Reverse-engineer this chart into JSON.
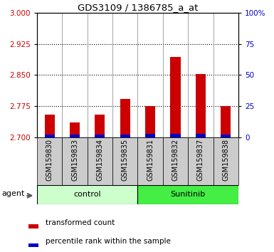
{
  "title": "GDS3109 / 1386785_a_at",
  "samples": [
    "GSM159830",
    "GSM159833",
    "GSM159834",
    "GSM159835",
    "GSM159831",
    "GSM159832",
    "GSM159837",
    "GSM159838"
  ],
  "groups": [
    "control",
    "control",
    "control",
    "control",
    "Sunitinib",
    "Sunitinib",
    "Sunitinib",
    "Sunitinib"
  ],
  "transformed_count": [
    2.755,
    2.735,
    2.755,
    2.792,
    2.775,
    2.893,
    2.852,
    2.775
  ],
  "percentile_rank": [
    2.0,
    2.0,
    2.0,
    2.0,
    3.0,
    3.0,
    3.0,
    2.0
  ],
  "ylim_left": [
    2.7,
    3.0
  ],
  "ylim_right": [
    0,
    100
  ],
  "yticks_left": [
    2.7,
    2.775,
    2.85,
    2.925,
    3.0
  ],
  "yticks_right": [
    0,
    25,
    50,
    75,
    100
  ],
  "red_color": "#cc0000",
  "blue_color": "#0000cc",
  "control_color": "#ccffcc",
  "sunitinib_color": "#44ee44",
  "xtick_bg_color": "#cccccc",
  "plot_bg": "#ffffff",
  "legend_red": "transformed count",
  "legend_blue": "percentile rank within the sample",
  "bar_width": 0.4
}
